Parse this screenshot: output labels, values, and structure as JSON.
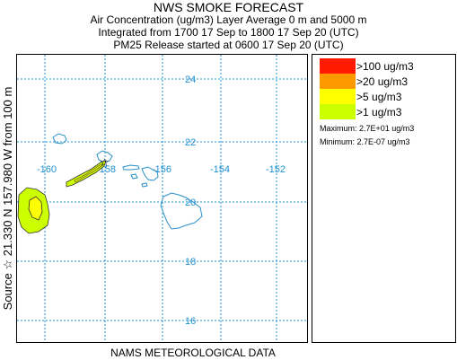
{
  "header": {
    "title": "NWS SMOKE FORECAST",
    "line2": "Air Concentration (ug/m3) Layer Average    0 m and  5000 m",
    "line3": "Integrated from 1700 17 Sep to 1800 17 Sep 20 (UTC)",
    "line4": "PM25 Release started at 0600 17 Sep 20 (UTC)"
  },
  "map": {
    "lat_labels": [
      "24",
      "22",
      "20",
      "18",
      "16"
    ],
    "lon_labels": [
      "-160",
      "-158",
      "-156",
      "-154",
      "-152"
    ],
    "grid_color": "#1e90d0",
    "coastline_color": "#2a8fc8"
  },
  "legend": {
    "items": [
      {
        "label": ">100 ug/m3",
        "color": "#ff1a00"
      },
      {
        "label": ">20 ug/m3",
        "color": "#ff9900"
      },
      {
        "label": ">5 ug/m3",
        "color": "#ffff00"
      },
      {
        "label": ">1 ug/m3",
        "color": "#ccff00"
      }
    ],
    "maximum": "Maximum: 2.7E+01 ug/m3",
    "minimum": "Minimum: 2.7E-07 ug/m3"
  },
  "source_label": "Source ☆ 21.330 N 157.980  W      from  100 m",
  "footer": "NAMS METEOROLOGICAL DATA"
}
